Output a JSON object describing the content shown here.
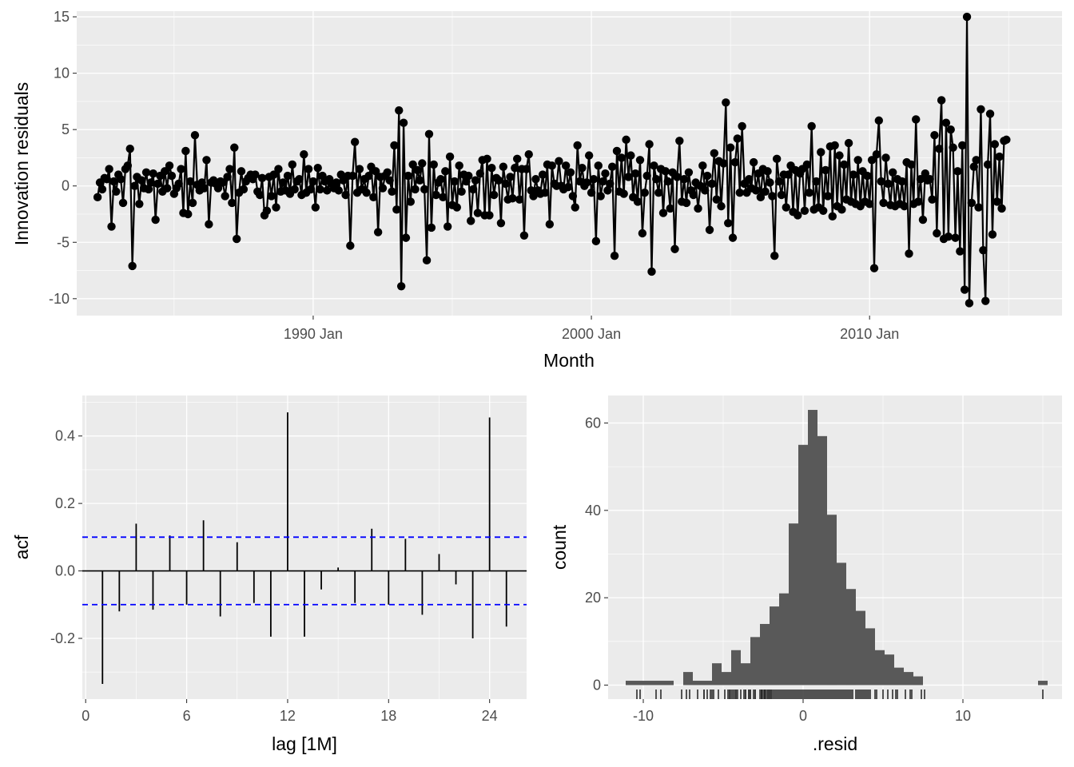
{
  "colors": {
    "panel_bg": "#ebebeb",
    "grid_major": "#ffffff",
    "line": "#000000",
    "ci": "#0000ff",
    "bar": "#595959"
  },
  "chart_data": [
    {
      "type": "line",
      "xlabel": "Month",
      "ylabel": "Innovation residuals",
      "ylim": [
        -11.5,
        15.5
      ],
      "xlim": [
        "1981-07",
        "2016-12"
      ],
      "yticks": [
        -10,
        -5,
        0,
        5,
        10,
        15
      ],
      "xticks": [
        {
          "label": "1990 Jan",
          "value": "1990-01"
        },
        {
          "label": "2000 Jan",
          "value": "2000-01"
        },
        {
          "label": "2010 Jan",
          "value": "2010-01"
        }
      ],
      "start": "1982-04",
      "frequency": "monthly",
      "values": [
        -1.0,
        0.3,
        -0.3,
        0.7,
        0.6,
        1.5,
        -3.6,
        0.4,
        -0.5,
        1.0,
        0.6,
        -1.5,
        1.5,
        1.8,
        3.3,
        -7.1,
        0.0,
        0.8,
        -1.6,
        0.5,
        -0.2,
        1.2,
        -0.3,
        0.3,
        1.1,
        -3.0,
        0.2,
        0.9,
        -0.5,
        1.3,
        -0.2,
        1.8,
        0.9,
        -0.7,
        -0.2,
        0.2,
        1.5,
        -2.4,
        3.1,
        -2.5,
        0.4,
        -1.5,
        4.5,
        0.1,
        -0.4,
        0.3,
        -0.2,
        2.3,
        -3.4,
        0.3,
        0.5,
        0.2,
        -0.2,
        0.4,
        0.3,
        -0.9,
        0.8,
        1.5,
        -1.5,
        3.4,
        -4.7,
        -0.6,
        1.3,
        -0.3,
        0.4,
        0.7,
        1.0,
        0.6,
        1.0,
        -0.5,
        -0.8,
        0.7,
        -2.6,
        -2.2,
        0.8,
        -0.9,
        1.0,
        -1.9,
        1.5,
        -0.5,
        0.3,
        -0.4,
        0.9,
        -0.7,
        1.9,
        -0.3,
        0.4,
        0.6,
        -0.8,
        2.8,
        -0.6,
        1.5,
        -0.3,
        0.4,
        -1.9,
        1.6,
        -0.3,
        0.9,
        0.4,
        -0.4,
        0.6,
        0.2,
        -0.2,
        0.3,
        -0.4,
        1.0,
        0.5,
        -0.8,
        0.9,
        -5.3,
        0.9,
        3.9,
        -0.6,
        1.5,
        -0.3,
        0.6,
        -0.6,
        0.9,
        1.7,
        -1.0,
        1.3,
        -4.1,
        0.8,
        -0.2,
        0.9,
        1.2,
        0.5,
        -0.5,
        3.6,
        -2.1,
        6.7,
        -8.9,
        5.6,
        -4.6,
        0.9,
        -1.4,
        1.9,
        -0.3,
        1.4,
        0.5,
        2.0,
        -0.3,
        -6.6,
        4.6,
        -3.7,
        1.9,
        -0.8,
        0.3,
        0.6,
        -1.0,
        1.3,
        -3.6,
        2.6,
        -1.7,
        0.4,
        -1.9,
        1.8,
        -0.5,
        1.0,
        0.4,
        0.9,
        -3.1,
        -0.3,
        0.5,
        -2.4,
        1.1,
        2.3,
        -2.6,
        2.4,
        -2.6,
        1.6,
        -0.8,
        0.7,
        0.5,
        -3.3,
        1.7,
        0.2,
        -1.2,
        0.8,
        -1.1,
        1.6,
        2.4,
        -1.2,
        1.5,
        -4.4,
        1.5,
        2.8,
        -0.4,
        -0.9,
        0.6,
        -0.4,
        -0.7,
        1.0,
        -0.6,
        1.9,
        -3.4,
        1.8,
        0.2,
        0.0,
        2.2,
        0.0,
        -0.3,
        1.8,
        -0.1,
        1.2,
        -0.9,
        -1.9,
        3.6,
        0.4,
        1.6,
        0.0,
        0.3,
        2.7,
        -0.6,
        0.6,
        -4.9,
        1.8,
        -0.9,
        0.4,
        1.1,
        -0.4,
        0.2,
        1.7,
        -6.2,
        3.1,
        -0.5,
        2.5,
        -0.7,
        4.1,
        0.8,
        2.7,
        -1.0,
        1.1,
        -1.4,
        2.3,
        -4.2,
        -0.6,
        0.9,
        3.7,
        -7.6,
        1.8,
        0.6,
        -0.6,
        1.5,
        -2.4,
        1.3,
        0.4,
        -2.0,
        1.2,
        -5.6,
        0.8,
        4.0,
        -1.4,
        0.6,
        -1.5,
        1.2,
        -0.4,
        -0.8,
        0.3,
        -2.0,
        0.0,
        1.8,
        -0.4,
        0.9,
        -3.9,
        0.2,
        2.9,
        -1.2,
        2.2,
        -1.8,
        2.0,
        7.4,
        -3.3,
        3.4,
        -4.6,
        2.1,
        4.2,
        -0.6,
        5.3,
        0.2,
        -0.6,
        0.6,
        -0.2,
        2.1,
        -0.4,
        1.1,
        -1.0,
        1.5,
        -0.5,
        1.3,
        0.3,
        -0.9,
        -6.2,
        2.4,
        0.4,
        -0.8,
        1.0,
        -1.9,
        1.0,
        1.8,
        -2.3,
        1.4,
        -2.6,
        1.1,
        1.5,
        -2.2,
        1.9,
        -0.6,
        5.3,
        -2.1,
        0.4,
        -1.9,
        3.0,
        -2.2,
        1.4,
        -0.9,
        3.5,
        -2.7,
        3.6,
        -1.8,
        2.7,
        -2.1,
        1.9,
        -1.2,
        3.8,
        -1.4,
        1.0,
        -1.6,
        2.3,
        -1.8,
        1.3,
        -1.4,
        0.9,
        -1.6,
        2.3,
        -7.3,
        2.8,
        5.8,
        0.4,
        -1.5,
        2.5,
        0.2,
        -1.7,
        1.2,
        -1.8,
        0.6,
        -1.6,
        0.4,
        -1.8,
        2.1,
        -6.0,
        1.9,
        -1.6,
        5.9,
        -1.4,
        0.6,
        -3.0,
        1.1,
        0.5,
        0.6,
        -1.2,
        4.5,
        -4.2,
        3.3,
        7.6,
        -4.7,
        5.6,
        -4.5,
        5.0,
        3.4,
        -4.6,
        1.3,
        -5.8,
        3.6,
        -9.2,
        15.0,
        -10.4,
        -1.5,
        1.7,
        2.3,
        -1.9,
        6.8,
        -5.7,
        -10.2,
        1.9,
        6.4,
        -4.3,
        3.7,
        -1.4,
        2.6,
        -2.0,
        4.0,
        4.1
      ]
    },
    {
      "type": "bar",
      "xlabel": "lag [1M]",
      "ylabel": "acf",
      "xlim": [
        -0.2,
        26.2
      ],
      "ylim": [
        -0.38,
        0.52
      ],
      "xticks": [
        0,
        6,
        12,
        18,
        24
      ],
      "yticks": [
        -0.2,
        0.0,
        0.2,
        0.4
      ],
      "ci": [
        -0.1,
        0.1
      ],
      "lags": [
        1,
        2,
        3,
        4,
        5,
        6,
        7,
        8,
        9,
        10,
        11,
        12,
        13,
        14,
        15,
        16,
        17,
        18,
        19,
        20,
        21,
        22,
        23,
        24,
        25
      ],
      "values": [
        -0.335,
        -0.12,
        0.14,
        -0.115,
        0.105,
        -0.1,
        0.15,
        -0.135,
        0.085,
        -0.095,
        -0.195,
        0.47,
        -0.195,
        -0.055,
        0.01,
        -0.095,
        0.125,
        -0.1,
        0.095,
        -0.13,
        0.05,
        -0.04,
        -0.2,
        0.455,
        -0.165
      ]
    },
    {
      "type": "histogram",
      "xlabel": ".resid",
      "ylabel": "count",
      "xlim": [
        -12.2,
        16.2
      ],
      "ylim": [
        -3.2,
        66.3
      ],
      "xticks": [
        -10,
        0,
        10
      ],
      "yticks": [
        0,
        20,
        40,
        60
      ],
      "binwidth": 0.6,
      "bins": [
        {
          "x": -10.8,
          "count": 1
        },
        {
          "x": -10.2,
          "count": 1
        },
        {
          "x": -9.6,
          "count": 1
        },
        {
          "x": -9.0,
          "count": 1
        },
        {
          "x": -8.4,
          "count": 1
        },
        {
          "x": -7.8,
          "count": 0
        },
        {
          "x": -7.2,
          "count": 3
        },
        {
          "x": -6.6,
          "count": 1
        },
        {
          "x": -6.0,
          "count": 1
        },
        {
          "x": -5.4,
          "count": 5
        },
        {
          "x": -4.8,
          "count": 3
        },
        {
          "x": -4.2,
          "count": 8
        },
        {
          "x": -3.6,
          "count": 5
        },
        {
          "x": -3.0,
          "count": 11
        },
        {
          "x": -2.4,
          "count": 14
        },
        {
          "x": -1.8,
          "count": 18
        },
        {
          "x": -1.2,
          "count": 21
        },
        {
          "x": -0.6,
          "count": 37
        },
        {
          "x": 0.0,
          "count": 55
        },
        {
          "x": 0.6,
          "count": 63
        },
        {
          "x": 1.2,
          "count": 57
        },
        {
          "x": 1.8,
          "count": 39
        },
        {
          "x": 2.4,
          "count": 28
        },
        {
          "x": 3.0,
          "count": 22
        },
        {
          "x": 3.6,
          "count": 17
        },
        {
          "x": 4.2,
          "count": 13
        },
        {
          "x": 4.8,
          "count": 8
        },
        {
          "x": 5.4,
          "count": 7
        },
        {
          "x": 6.0,
          "count": 4
        },
        {
          "x": 6.6,
          "count": 3
        },
        {
          "x": 7.2,
          "count": 2
        },
        {
          "x": 7.8,
          "count": 0
        },
        {
          "x": 15.0,
          "count": 1
        }
      ],
      "rug": [
        -10.4,
        -10.2,
        -9.2,
        -8.9,
        -7.6,
        -7.3,
        -7.1,
        -6.6,
        -6.2,
        -6.2,
        -6.0,
        -5.8,
        -5.7,
        -5.6,
        -5.3,
        -4.9,
        -4.7,
        -4.6,
        -4.6,
        -4.5,
        -4.4,
        -4.3,
        -4.2,
        -4.2,
        -4.1,
        -3.9,
        -3.7,
        -3.6,
        -3.6,
        -3.4,
        -3.4,
        -3.3,
        -3.3,
        -3.1,
        -3.0,
        -3.0,
        -2.7,
        -2.6,
        -2.6,
        -2.6,
        -2.5,
        -2.4,
        -2.4,
        -2.4,
        -2.3,
        -2.2,
        -2.2,
        -2.1,
        -2.1,
        -2.0,
        -2.0,
        -1.9,
        -1.8,
        -1.7,
        -1.6,
        -1.5,
        -1.4,
        -1.3,
        -1.2,
        -1.1,
        -1.0,
        -0.9,
        -0.8,
        -0.7,
        -0.6,
        -0.5,
        -0.4,
        -0.3,
        -0.2,
        -0.1,
        0.0,
        0.1,
        0.2,
        0.3,
        0.4,
        0.5,
        0.6,
        0.7,
        0.8,
        0.9,
        1.0,
        1.1,
        1.2,
        1.3,
        1.4,
        1.5,
        1.6,
        1.7,
        1.8,
        1.9,
        2.0,
        2.1,
        2.2,
        2.3,
        2.4,
        2.5,
        2.6,
        2.7,
        2.8,
        2.9,
        3.0,
        3.1,
        3.3,
        3.4,
        3.5,
        3.6,
        3.7,
        3.8,
        3.9,
        4.0,
        4.1,
        4.2,
        4.5,
        4.6,
        5.0,
        5.3,
        5.6,
        5.8,
        5.9,
        6.4,
        6.7,
        6.8,
        7.4,
        7.6,
        15.0
      ]
    }
  ]
}
